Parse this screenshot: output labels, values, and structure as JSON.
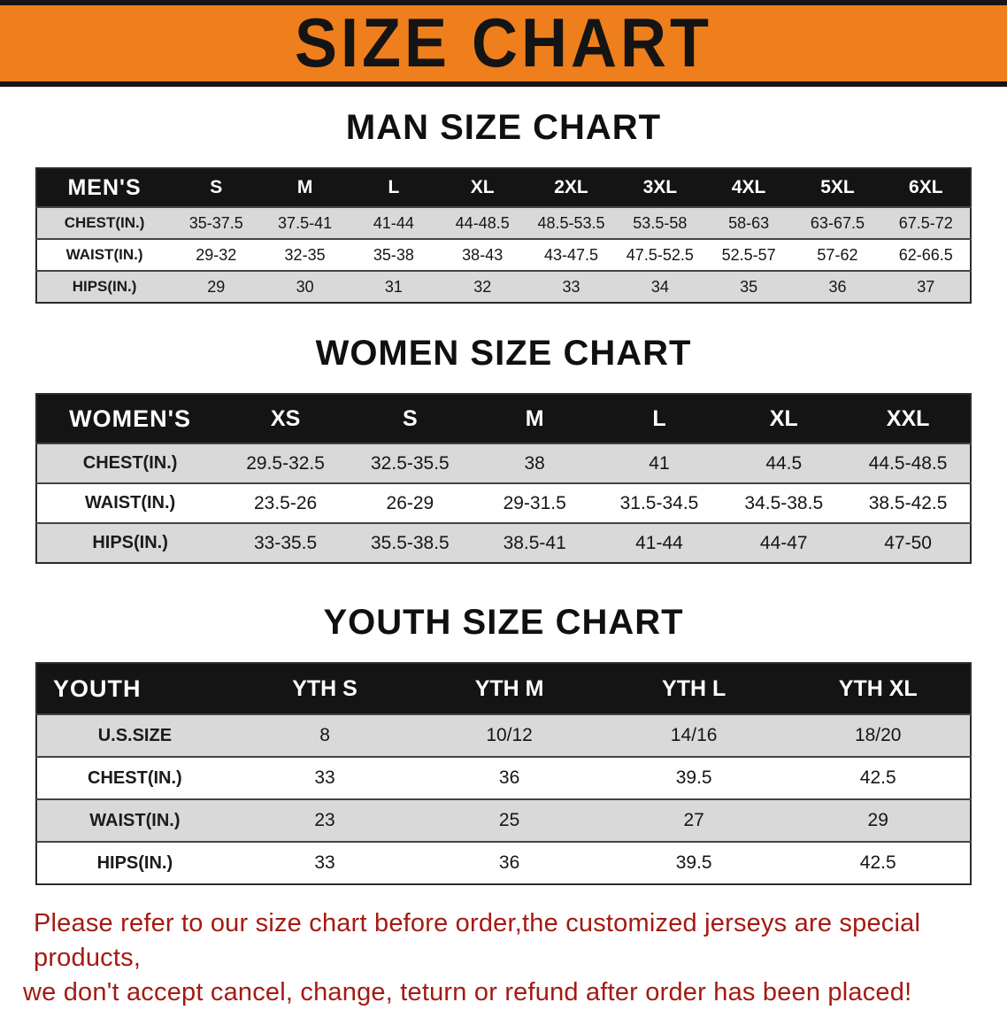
{
  "banner": {
    "title": "SIZE CHART",
    "bg_color": "#ee7f1c"
  },
  "sections": [
    {
      "heading": "MAN SIZE CHART",
      "table": {
        "header_label": "MEN'S",
        "columns": [
          "S",
          "M",
          "L",
          "XL",
          "2XL",
          "3XL",
          "4XL",
          "5XL",
          "6XL"
        ],
        "rows": [
          {
            "label": "CHEST(IN.)",
            "values": [
              "35-37.5",
              "37.5-41",
              "41-44",
              "44-48.5",
              "48.5-53.5",
              "53.5-58",
              "58-63",
              "63-67.5",
              "67.5-72"
            ]
          },
          {
            "label": "WAIST(IN.)",
            "values": [
              "29-32",
              "32-35",
              "35-38",
              "38-43",
              "43-47.5",
              "47.5-52.5",
              "52.5-57",
              "57-62",
              "62-66.5"
            ]
          },
          {
            "label": "HIPS(IN.)",
            "values": [
              "29",
              "30",
              "31",
              "32",
              "33",
              "34",
              "35",
              "36",
              "37"
            ]
          }
        ]
      }
    },
    {
      "heading": "WOMEN SIZE CHART",
      "table": {
        "header_label": "WOMEN'S",
        "columns": [
          "XS",
          "S",
          "M",
          "L",
          "XL",
          "XXL"
        ],
        "rows": [
          {
            "label": "CHEST(IN.)",
            "values": [
              "29.5-32.5",
              "32.5-35.5",
              "38",
              "41",
              "44.5",
              "44.5-48.5"
            ]
          },
          {
            "label": "WAIST(IN.)",
            "values": [
              "23.5-26",
              "26-29",
              "29-31.5",
              "31.5-34.5",
              "34.5-38.5",
              "38.5-42.5"
            ]
          },
          {
            "label": "HIPS(IN.)",
            "values": [
              "33-35.5",
              "35.5-38.5",
              "38.5-41",
              "41-44",
              "44-47",
              "47-50"
            ]
          }
        ]
      }
    },
    {
      "heading": "YOUTH SIZE CHART",
      "table": {
        "header_label": "YOUTH",
        "columns": [
          "YTH S",
          "YTH M",
          "YTH L",
          "YTH XL"
        ],
        "rows": [
          {
            "label": "U.S.SIZE",
            "values": [
              "8",
              "10/12",
              "14/16",
              "18/20"
            ]
          },
          {
            "label": "CHEST(IN.)",
            "values": [
              "33",
              "36",
              "39.5",
              "42.5"
            ]
          },
          {
            "label": "WAIST(IN.)",
            "values": [
              "23",
              "25",
              "27",
              "29"
            ]
          },
          {
            "label": "HIPS(IN.)",
            "values": [
              "33",
              "36",
              "39.5",
              "42.5"
            ]
          }
        ]
      }
    }
  ],
  "footer": {
    "line1": "Please refer to our size chart before order,the customized jerseys are special products,",
    "line2": "we don't accept cancel, change, teturn or refund after order has been placed!",
    "text_color": "#a41a12"
  }
}
